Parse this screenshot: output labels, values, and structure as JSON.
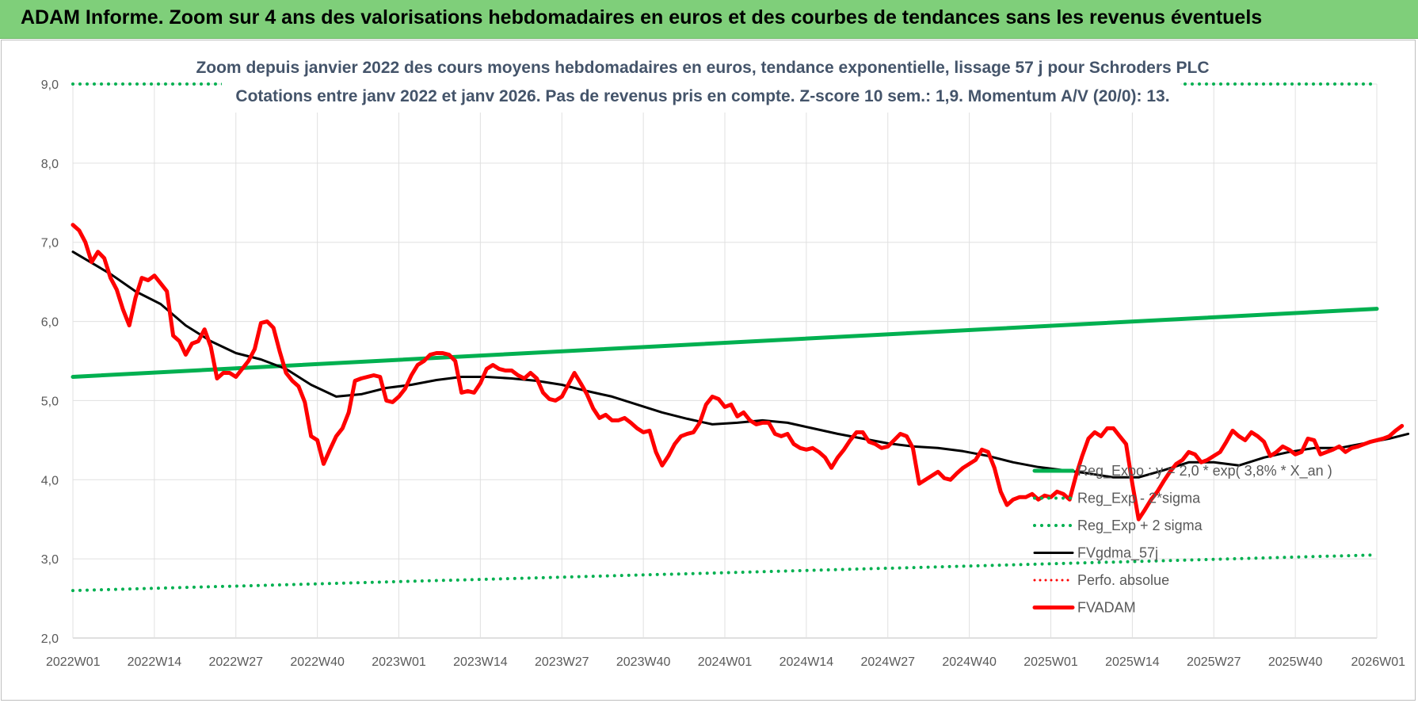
{
  "header": {
    "title": "ADAM Informe. Zoom sur 4 ans des valorisations hebdomadaires en euros et des courbes de tendances sans les revenus éventuels"
  },
  "chart_data": {
    "type": "line",
    "subtitle_line1": "Zoom depuis janvier 2022 des cours moyens hebdomadaires en euros, tendance exponentielle, lissage 57 j pour Schroders PLC",
    "subtitle_line2": "Cotations entre janv 2022 et janv 2026. Pas de revenus pris en compte. Z-score 10 sem.: 1,9. Momentum A/V (20/0): 13.",
    "ylim": [
      2.0,
      9.0
    ],
    "y_ticks": [
      "2,0",
      "3,0",
      "4,0",
      "5,0",
      "6,0",
      "7,0",
      "8,0",
      "9,0"
    ],
    "x_ticks": [
      "2022W01",
      "2022W14",
      "2022W27",
      "2022W40",
      "2023W01",
      "2023W14",
      "2023W27",
      "2023W40",
      "2024W01",
      "2024W14",
      "2024W27",
      "2024W40",
      "2025W01",
      "2025W14",
      "2025W27",
      "2025W40",
      "2026W01"
    ],
    "grid": true,
    "legend_position": "bottom-right",
    "colors": {
      "reg_exp": "#00b050",
      "sigma": "#00b050",
      "fvgdma": "#000000",
      "perfo": "#ff0000",
      "fvadam": "#ff0000"
    },
    "series": [
      {
        "name": "Reg_Expo : y = 2,0 * exp( 3,8% *  X_an )",
        "style": "solid-thick",
        "points": [
          [
            0,
            5.3
          ],
          [
            208,
            6.16
          ]
        ]
      },
      {
        "name": "Reg_Exp - 2*sigma",
        "style": "dotted",
        "points": [
          [
            0,
            2.6
          ],
          [
            208,
            3.05
          ]
        ]
      },
      {
        "name": "Reg_Exp + 2 sigma",
        "style": "dotted",
        "points": [
          [
            0,
            9.0
          ],
          [
            208,
            9.0
          ]
        ]
      },
      {
        "name": "FVgdma_57j",
        "style": "solid",
        "points": [
          [
            0,
            6.88
          ],
          [
            6,
            6.6
          ],
          [
            10,
            6.38
          ],
          [
            14,
            6.22
          ],
          [
            18,
            5.95
          ],
          [
            22,
            5.75
          ],
          [
            26,
            5.6
          ],
          [
            30,
            5.52
          ],
          [
            34,
            5.4
          ],
          [
            38,
            5.2
          ],
          [
            42,
            5.05
          ],
          [
            46,
            5.08
          ],
          [
            50,
            5.16
          ],
          [
            54,
            5.2
          ],
          [
            58,
            5.26
          ],
          [
            62,
            5.3
          ],
          [
            66,
            5.3
          ],
          [
            70,
            5.28
          ],
          [
            74,
            5.25
          ],
          [
            78,
            5.2
          ],
          [
            82,
            5.12
          ],
          [
            86,
            5.05
          ],
          [
            90,
            4.95
          ],
          [
            94,
            4.85
          ],
          [
            98,
            4.77
          ],
          [
            102,
            4.7
          ],
          [
            106,
            4.72
          ],
          [
            110,
            4.75
          ],
          [
            114,
            4.72
          ],
          [
            118,
            4.65
          ],
          [
            122,
            4.58
          ],
          [
            126,
            4.52
          ],
          [
            130,
            4.46
          ],
          [
            134,
            4.42
          ],
          [
            138,
            4.4
          ],
          [
            142,
            4.36
          ],
          [
            146,
            4.3
          ],
          [
            150,
            4.22
          ],
          [
            154,
            4.16
          ],
          [
            158,
            4.12
          ],
          [
            162,
            4.08
          ],
          [
            166,
            4.03
          ],
          [
            170,
            4.03
          ],
          [
            174,
            4.12
          ],
          [
            178,
            4.22
          ],
          [
            182,
            4.22
          ],
          [
            186,
            4.18
          ],
          [
            190,
            4.28
          ],
          [
            194,
            4.35
          ],
          [
            198,
            4.4
          ],
          [
            202,
            4.4
          ],
          [
            206,
            4.46
          ],
          [
            210,
            4.52
          ],
          [
            213,
            4.58
          ]
        ]
      },
      {
        "name": "Perfo. absolue",
        "style": "dotted-red",
        "points": []
      },
      {
        "name": "FVADAM",
        "style": "solid-thick-red",
        "points": [
          [
            0,
            7.22
          ],
          [
            1,
            7.15
          ],
          [
            2,
            7.0
          ],
          [
            3,
            6.75
          ],
          [
            4,
            6.88
          ],
          [
            5,
            6.8
          ],
          [
            6,
            6.55
          ],
          [
            7,
            6.4
          ],
          [
            8,
            6.15
          ],
          [
            9,
            5.95
          ],
          [
            10,
            6.3
          ],
          [
            11,
            6.55
          ],
          [
            12,
            6.52
          ],
          [
            13,
            6.58
          ],
          [
            14,
            6.48
          ],
          [
            15,
            6.38
          ],
          [
            16,
            5.82
          ],
          [
            17,
            5.75
          ],
          [
            18,
            5.58
          ],
          [
            19,
            5.72
          ],
          [
            20,
            5.75
          ],
          [
            21,
            5.9
          ],
          [
            22,
            5.68
          ],
          [
            23,
            5.28
          ],
          [
            24,
            5.35
          ],
          [
            25,
            5.35
          ],
          [
            26,
            5.3
          ],
          [
            27,
            5.4
          ],
          [
            28,
            5.5
          ],
          [
            29,
            5.65
          ],
          [
            30,
            5.98
          ],
          [
            31,
            6.0
          ],
          [
            32,
            5.92
          ],
          [
            33,
            5.62
          ],
          [
            34,
            5.35
          ],
          [
            35,
            5.25
          ],
          [
            36,
            5.18
          ],
          [
            37,
            4.98
          ],
          [
            38,
            4.55
          ],
          [
            39,
            4.5
          ],
          [
            40,
            4.2
          ],
          [
            41,
            4.38
          ],
          [
            42,
            4.55
          ],
          [
            43,
            4.65
          ],
          [
            44,
            4.85
          ],
          [
            45,
            5.25
          ],
          [
            46,
            5.28
          ],
          [
            47,
            5.3
          ],
          [
            48,
            5.32
          ],
          [
            49,
            5.3
          ],
          [
            50,
            5.0
          ],
          [
            51,
            4.98
          ],
          [
            52,
            5.05
          ],
          [
            53,
            5.15
          ],
          [
            54,
            5.32
          ],
          [
            55,
            5.45
          ],
          [
            56,
            5.5
          ],
          [
            57,
            5.58
          ],
          [
            58,
            5.6
          ],
          [
            59,
            5.6
          ],
          [
            60,
            5.58
          ],
          [
            61,
            5.5
          ],
          [
            62,
            5.1
          ],
          [
            63,
            5.12
          ],
          [
            64,
            5.1
          ],
          [
            65,
            5.22
          ],
          [
            66,
            5.4
          ],
          [
            67,
            5.45
          ],
          [
            68,
            5.4
          ],
          [
            69,
            5.38
          ],
          [
            70,
            5.38
          ],
          [
            71,
            5.32
          ],
          [
            72,
            5.28
          ],
          [
            73,
            5.35
          ],
          [
            74,
            5.28
          ],
          [
            75,
            5.1
          ],
          [
            76,
            5.02
          ],
          [
            77,
            5.0
          ],
          [
            78,
            5.05
          ],
          [
            79,
            5.2
          ],
          [
            80,
            5.35
          ],
          [
            81,
            5.22
          ],
          [
            82,
            5.08
          ],
          [
            83,
            4.9
          ],
          [
            84,
            4.78
          ],
          [
            85,
            4.82
          ],
          [
            86,
            4.75
          ],
          [
            87,
            4.75
          ],
          [
            88,
            4.78
          ],
          [
            89,
            4.72
          ],
          [
            90,
            4.65
          ],
          [
            91,
            4.6
          ],
          [
            92,
            4.62
          ],
          [
            93,
            4.35
          ],
          [
            94,
            4.18
          ],
          [
            95,
            4.3
          ],
          [
            96,
            4.45
          ],
          [
            97,
            4.55
          ],
          [
            98,
            4.58
          ],
          [
            99,
            4.6
          ],
          [
            100,
            4.72
          ],
          [
            101,
            4.95
          ],
          [
            102,
            5.05
          ],
          [
            103,
            5.02
          ],
          [
            104,
            4.92
          ],
          [
            105,
            4.95
          ],
          [
            106,
            4.8
          ],
          [
            107,
            4.85
          ],
          [
            108,
            4.75
          ],
          [
            109,
            4.7
          ],
          [
            110,
            4.72
          ],
          [
            111,
            4.72
          ],
          [
            112,
            4.58
          ],
          [
            113,
            4.55
          ],
          [
            114,
            4.58
          ],
          [
            115,
            4.45
          ],
          [
            116,
            4.4
          ],
          [
            117,
            4.38
          ],
          [
            118,
            4.4
          ],
          [
            119,
            4.35
          ],
          [
            120,
            4.28
          ],
          [
            121,
            4.15
          ],
          [
            122,
            4.28
          ],
          [
            123,
            4.38
          ],
          [
            124,
            4.5
          ],
          [
            125,
            4.6
          ],
          [
            126,
            4.6
          ],
          [
            127,
            4.48
          ],
          [
            128,
            4.45
          ],
          [
            129,
            4.4
          ],
          [
            130,
            4.42
          ],
          [
            131,
            4.5
          ],
          [
            132,
            4.58
          ],
          [
            133,
            4.55
          ],
          [
            134,
            4.4
          ],
          [
            135,
            3.95
          ],
          [
            136,
            4.0
          ],
          [
            137,
            4.05
          ],
          [
            138,
            4.1
          ],
          [
            139,
            4.02
          ],
          [
            140,
            4.0
          ],
          [
            141,
            4.08
          ],
          [
            142,
            4.15
          ],
          [
            143,
            4.2
          ],
          [
            144,
            4.25
          ],
          [
            145,
            4.38
          ],
          [
            146,
            4.35
          ],
          [
            147,
            4.15
          ],
          [
            148,
            3.85
          ],
          [
            149,
            3.68
          ],
          [
            150,
            3.75
          ],
          [
            151,
            3.78
          ],
          [
            152,
            3.78
          ],
          [
            153,
            3.82
          ],
          [
            154,
            3.75
          ],
          [
            155,
            3.8
          ],
          [
            156,
            3.78
          ],
          [
            157,
            3.85
          ],
          [
            158,
            3.82
          ],
          [
            159,
            3.75
          ],
          [
            160,
            4.05
          ],
          [
            161,
            4.3
          ],
          [
            162,
            4.52
          ],
          [
            163,
            4.6
          ],
          [
            164,
            4.55
          ],
          [
            165,
            4.65
          ],
          [
            166,
            4.65
          ],
          [
            167,
            4.55
          ],
          [
            168,
            4.45
          ],
          [
            169,
            3.95
          ],
          [
            170,
            3.5
          ],
          [
            171,
            3.62
          ],
          [
            172,
            3.75
          ],
          [
            173,
            3.85
          ],
          [
            174,
            3.98
          ],
          [
            175,
            4.1
          ],
          [
            176,
            4.2
          ],
          [
            177,
            4.25
          ],
          [
            178,
            4.35
          ],
          [
            179,
            4.32
          ],
          [
            180,
            4.22
          ],
          [
            181,
            4.25
          ],
          [
            182,
            4.3
          ],
          [
            183,
            4.35
          ],
          [
            184,
            4.48
          ],
          [
            185,
            4.62
          ],
          [
            186,
            4.55
          ],
          [
            187,
            4.5
          ],
          [
            188,
            4.6
          ],
          [
            189,
            4.55
          ],
          [
            190,
            4.48
          ],
          [
            191,
            4.3
          ],
          [
            192,
            4.35
          ],
          [
            193,
            4.42
          ],
          [
            194,
            4.38
          ],
          [
            195,
            4.32
          ],
          [
            196,
            4.35
          ],
          [
            197,
            4.52
          ],
          [
            198,
            4.5
          ],
          [
            199,
            4.32
          ],
          [
            200,
            4.35
          ],
          [
            201,
            4.38
          ],
          [
            202,
            4.42
          ],
          [
            203,
            4.35
          ],
          [
            204,
            4.4
          ],
          [
            205,
            4.42
          ],
          [
            206,
            4.45
          ],
          [
            207,
            4.48
          ],
          [
            208,
            4.5
          ],
          [
            209,
            4.52
          ],
          [
            210,
            4.55
          ],
          [
            211,
            4.62
          ],
          [
            212,
            4.68
          ]
        ]
      }
    ]
  }
}
